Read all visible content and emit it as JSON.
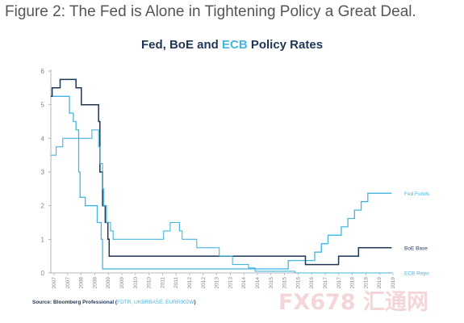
{
  "caption": "Figure 2: The Fed is Alone in Tightening Policy a Great Deal.",
  "title_parts": {
    "fed": "Fed",
    "sep1": ", ",
    "boe": "BoE",
    "sep2": " and ",
    "ecb": "ECB",
    "rest": " Policy Rates"
  },
  "source": {
    "prefix": "Source: Bloomberg Professional (",
    "codes": "FDTR, UKBRBASE, EURR002W",
    "suffix": ")"
  },
  "watermark": "FX678 汇通网",
  "colors": {
    "fed": "#43b5e0",
    "boe": "#1f3556",
    "ecb": "#43b5e0",
    "axis": "#9aa3ad",
    "tick_label": "#7f8891"
  },
  "chart_data": {
    "type": "line",
    "title": "Fed, BoE and ECB Policy Rates",
    "xlabel": "",
    "ylabel": "",
    "ylim": [
      0,
      6
    ],
    "xlim": [
      2007.0,
      2019.9
    ],
    "yticks": [
      0,
      1,
      2,
      3,
      4,
      5,
      6
    ],
    "xtick_labels": [
      "2007",
      "2007",
      "2008",
      "2008",
      "2009",
      "2009",
      "2010",
      "2010",
      "2011",
      "2011",
      "2012",
      "2012",
      "2013",
      "2013",
      "2014",
      "2014",
      "2015",
      "2015",
      "2016",
      "2016",
      "2017",
      "2017",
      "2018",
      "2018",
      "2019",
      "2019"
    ],
    "grid": false,
    "legend_placement": "right end of lines",
    "series": [
      {
        "name": "Fed Funds",
        "step": true,
        "x": [
          2007.0,
          2007.7,
          2007.85,
          2007.95,
          2008.05,
          2008.1,
          2008.3,
          2008.75,
          2008.9,
          2008.95,
          2015.95,
          2016.95,
          2017.2,
          2017.45,
          2017.95,
          2018.2,
          2018.45,
          2018.7,
          2018.95,
          2019.55,
          2019.65,
          2019.85
        ],
        "y": [
          5.25,
          4.75,
          4.5,
          4.25,
          3.0,
          2.25,
          2.0,
          1.5,
          1.0,
          0.12,
          0.37,
          0.62,
          0.87,
          1.12,
          1.37,
          1.62,
          1.87,
          2.12,
          2.37,
          2.37,
          2.37,
          2.37
        ]
      },
      {
        "name": "BoE Base",
        "step": true,
        "x": [
          2007.0,
          2007.05,
          2007.35,
          2007.5,
          2007.95,
          2008.15,
          2008.8,
          2008.85,
          2008.95,
          2009.05,
          2009.15,
          2009.2,
          2016.6,
          2017.85,
          2018.6,
          2019.85
        ],
        "y": [
          5.25,
          5.5,
          5.75,
          5.75,
          5.5,
          5.0,
          4.5,
          3.0,
          2.0,
          1.5,
          1.0,
          0.5,
          0.25,
          0.5,
          0.75,
          0.75
        ]
      },
      {
        "name": "ECB Repo",
        "step": true,
        "x": [
          2007.0,
          2007.2,
          2007.45,
          2008.55,
          2008.8,
          2008.85,
          2008.95,
          2009.0,
          2009.1,
          2009.25,
          2009.35,
          2011.25,
          2011.5,
          2011.85,
          2011.95,
          2012.5,
          2013.35,
          2013.85,
          2014.45,
          2014.7,
          2016.2,
          2019.85
        ],
        "y": [
          3.5,
          3.75,
          4.0,
          4.25,
          3.75,
          3.25,
          2.5,
          2.0,
          1.5,
          1.25,
          1.0,
          1.25,
          1.5,
          1.25,
          1.0,
          0.75,
          0.5,
          0.25,
          0.15,
          0.05,
          0.0,
          0.0
        ]
      }
    ]
  }
}
